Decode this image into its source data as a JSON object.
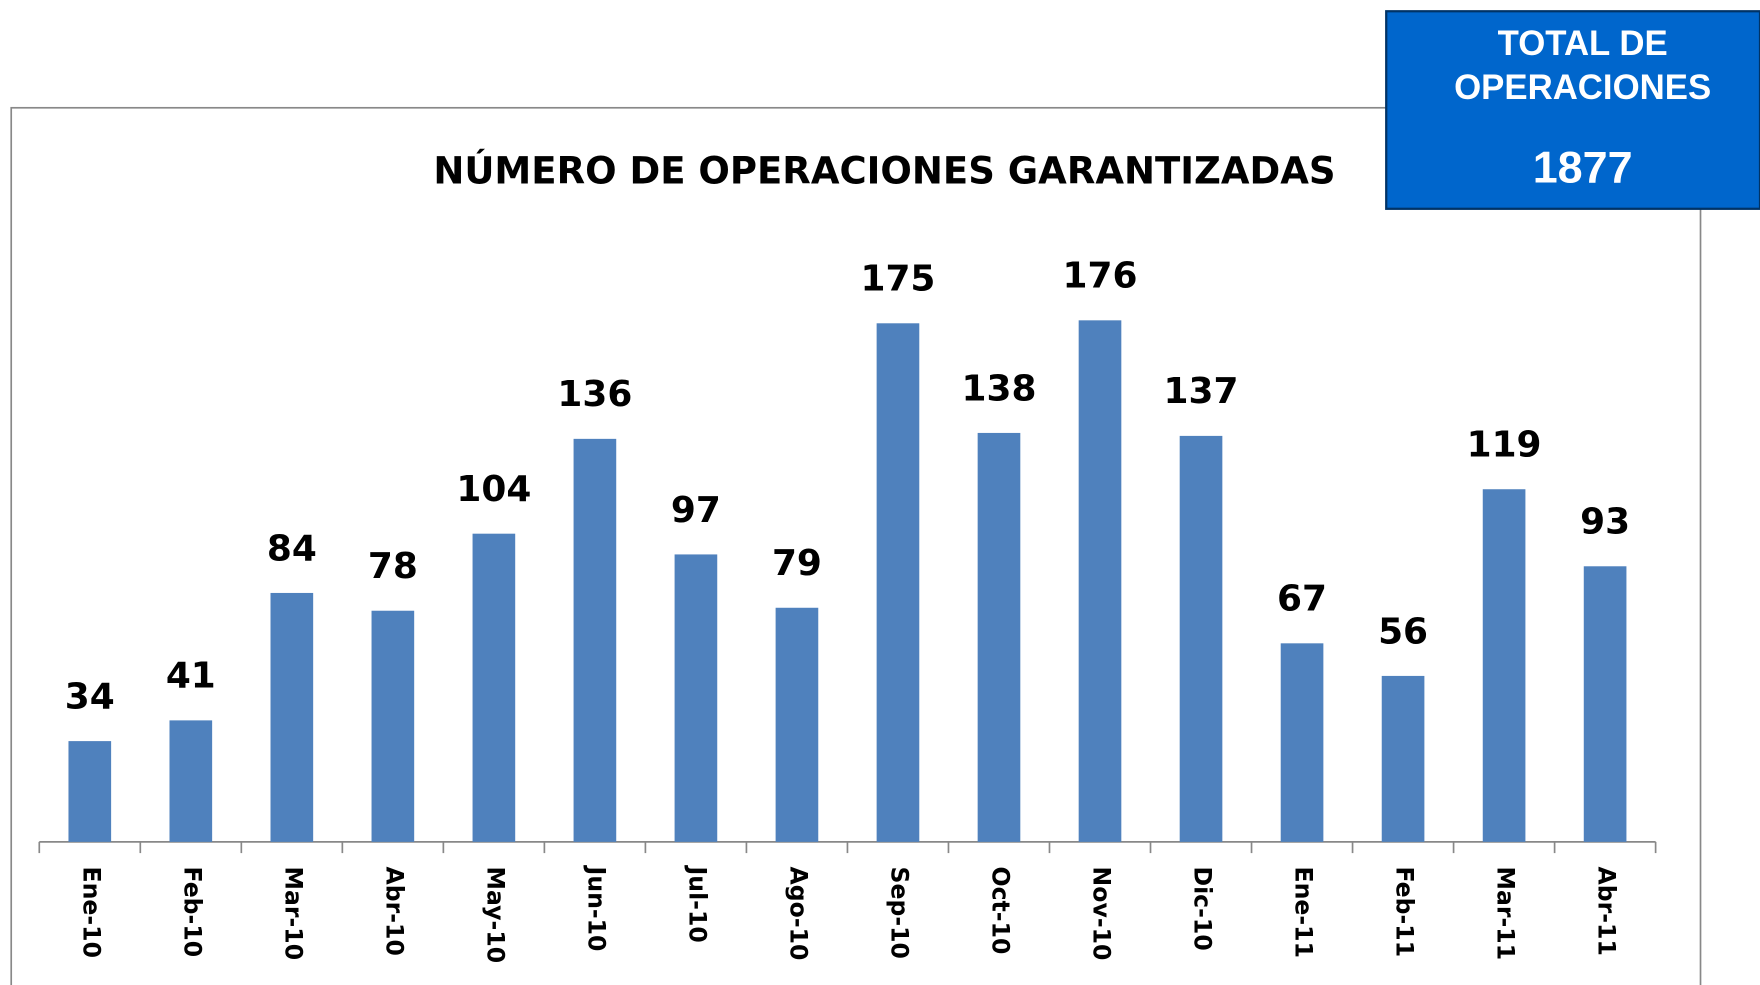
{
  "chart_data": {
    "type": "bar",
    "title": "NÚMERO DE OPERACIONES GARANTIZADAS",
    "categories": [
      "Ene-10",
      "Feb-10",
      "Mar-10",
      "Abr-10",
      "May-10",
      "Jun-10",
      "Jul-10",
      "Ago-10",
      "Sep-10",
      "Oct-10",
      "Nov-10",
      "Dic-10",
      "Ene-11",
      "Feb-11",
      "Mar-11",
      "Abr-11"
    ],
    "values": [
      34,
      41,
      84,
      78,
      104,
      136,
      97,
      79,
      175,
      138,
      176,
      137,
      67,
      56,
      119,
      93
    ],
    "color": "#4f81bd",
    "ylim": [
      0,
      200
    ],
    "total": {
      "label": [
        "TOTAL DE",
        "OPERACIONES"
      ],
      "value": 1877,
      "color": "#0066cc"
    }
  }
}
